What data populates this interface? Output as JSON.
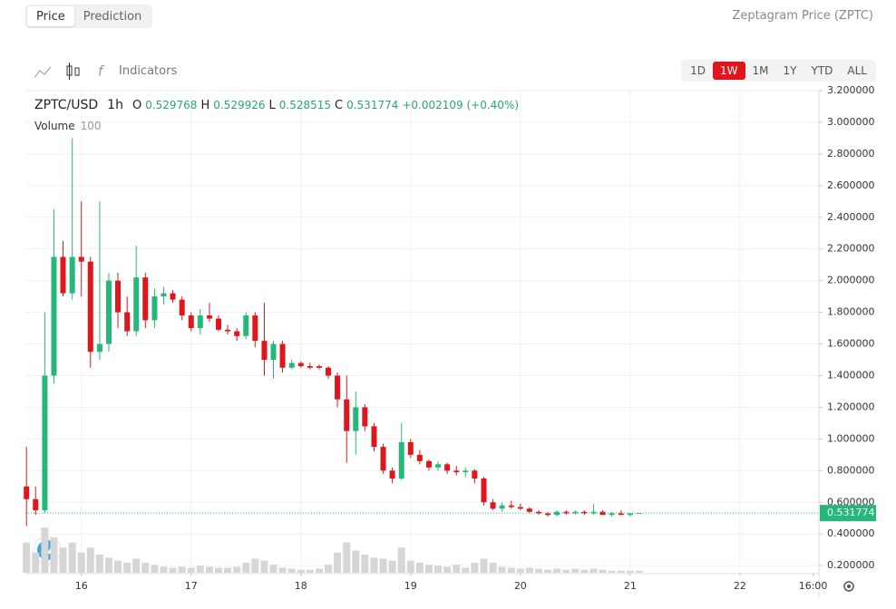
{
  "ui": {
    "tabs": [
      "Price",
      "Prediction"
    ],
    "page_title": "Zeptagram Price (ZPTC)",
    "indicators": "Indicators",
    "ranges": [
      "1D",
      "1W",
      "1M",
      "1Y",
      "YTD",
      "ALL"
    ]
  },
  "chart_data": {
    "type": "candlestick",
    "symbol": "ZPTC/USD",
    "interval": "1h",
    "ohlc_labels": [
      "O",
      "H",
      "L",
      "C"
    ],
    "change": "+0.002109 (+0.40%)",
    "volume_label": "Volume",
    "volume_length": 100,
    "x": [
      15.5,
      15.583,
      15.667,
      15.75,
      15.833,
      15.917,
      16,
      16.083,
      16.167,
      16.25,
      16.333,
      16.417,
      16.5,
      16.583,
      16.667,
      16.75,
      16.833,
      16.917,
      17,
      17.083,
      17.167,
      17.25,
      17.333,
      17.417,
      17.5,
      17.583,
      17.667,
      17.75,
      17.833,
      17.917,
      18,
      18.083,
      18.167,
      18.25,
      18.333,
      18.417,
      18.5,
      18.583,
      18.667,
      18.75,
      18.833,
      18.917,
      19,
      19.083,
      19.167,
      19.25,
      19.333,
      19.417,
      19.5,
      19.583,
      19.667,
      19.75,
      19.833,
      19.917,
      20,
      20.083,
      20.167,
      20.25,
      20.333,
      20.417,
      20.5,
      20.583,
      20.667,
      20.75,
      20.833,
      20.917,
      21,
      21.083
    ],
    "open": [
      0.7,
      0.62,
      0.55,
      1.4,
      2.15,
      1.92,
      2.15,
      2.12,
      1.55,
      1.6,
      2.0,
      1.8,
      1.68,
      2.02,
      1.75,
      1.9,
      1.92,
      1.88,
      1.78,
      1.7,
      1.78,
      1.76,
      1.69,
      1.68,
      1.65,
      1.78,
      1.62,
      1.5,
      1.6,
      1.45,
      1.48,
      1.46,
      1.46,
      1.45,
      1.4,
      1.25,
      1.05,
      1.2,
      1.08,
      0.95,
      0.8,
      0.75,
      0.98,
      0.9,
      0.86,
      0.82,
      0.84,
      0.8,
      0.79,
      0.8,
      0.75,
      0.6,
      0.56,
      0.58,
      0.57,
      0.56,
      0.54,
      0.53,
      0.52,
      0.54,
      0.53,
      0.54,
      0.53,
      0.54,
      0.52,
      0.53,
      0.52,
      0.529768
    ],
    "high": [
      0.95,
      0.7,
      1.8,
      2.45,
      2.25,
      2.9,
      2.5,
      2.15,
      2.5,
      2.05,
      2.05,
      1.9,
      2.22,
      2.05,
      1.95,
      1.96,
      1.94,
      1.9,
      1.8,
      1.82,
      1.86,
      1.78,
      1.72,
      1.7,
      1.8,
      1.8,
      1.86,
      1.62,
      1.62,
      1.5,
      1.49,
      1.48,
      1.47,
      1.46,
      1.42,
      1.4,
      1.3,
      1.22,
      1.1,
      0.97,
      0.82,
      1.1,
      1.0,
      0.93,
      0.87,
      0.86,
      0.85,
      0.83,
      0.82,
      0.81,
      0.76,
      0.62,
      0.6,
      0.61,
      0.59,
      0.57,
      0.55,
      0.54,
      0.55,
      0.55,
      0.55,
      0.55,
      0.59,
      0.55,
      0.54,
      0.55,
      0.53,
      0.529926
    ],
    "low": [
      0.45,
      0.52,
      0.53,
      1.35,
      1.9,
      1.88,
      1.9,
      1.45,
      1.5,
      1.55,
      1.7,
      1.65,
      1.65,
      1.7,
      1.7,
      1.85,
      1.86,
      1.75,
      1.68,
      1.66,
      1.74,
      1.68,
      1.66,
      1.62,
      1.63,
      1.58,
      1.4,
      1.38,
      1.42,
      1.44,
      1.45,
      1.44,
      1.44,
      1.38,
      1.2,
      0.85,
      0.9,
      1.05,
      0.92,
      0.78,
      0.72,
      0.74,
      0.88,
      0.84,
      0.8,
      0.8,
      0.78,
      0.77,
      0.76,
      0.72,
      0.58,
      0.55,
      0.54,
      0.56,
      0.55,
      0.53,
      0.52,
      0.51,
      0.51,
      0.52,
      0.52,
      0.52,
      0.52,
      0.52,
      0.51,
      0.52,
      0.51,
      0.528515
    ],
    "close": [
      0.62,
      0.55,
      1.4,
      2.15,
      1.92,
      2.15,
      2.12,
      1.55,
      1.6,
      2.0,
      1.8,
      1.68,
      2.02,
      1.75,
      1.9,
      1.92,
      1.88,
      1.78,
      1.7,
      1.78,
      1.76,
      1.69,
      1.68,
      1.65,
      1.78,
      1.62,
      1.5,
      1.6,
      1.45,
      1.48,
      1.46,
      1.45,
      1.45,
      1.4,
      1.25,
      1.05,
      1.2,
      1.08,
      0.95,
      0.8,
      0.75,
      0.98,
      0.9,
      0.86,
      0.82,
      0.84,
      0.8,
      0.79,
      0.8,
      0.75,
      0.6,
      0.56,
      0.58,
      0.57,
      0.56,
      0.54,
      0.53,
      0.52,
      0.54,
      0.53,
      0.54,
      0.53,
      0.54,
      0.52,
      0.53,
      0.52,
      0.53,
      0.531774
    ],
    "volume": [
      30,
      20,
      45,
      35,
      25,
      30,
      20,
      25,
      18,
      15,
      12,
      10,
      14,
      10,
      8,
      6,
      5,
      6,
      5,
      7,
      6,
      5,
      5,
      6,
      10,
      14,
      12,
      8,
      5,
      4,
      3,
      3,
      4,
      8,
      20,
      30,
      22,
      18,
      15,
      14,
      12,
      25,
      12,
      10,
      8,
      7,
      6,
      8,
      5,
      10,
      14,
      10,
      6,
      5,
      4,
      5,
      4,
      3,
      4,
      3,
      4,
      3,
      4,
      3,
      2,
      2,
      2,
      2
    ],
    "up_color": "#26b87a",
    "down_color": "#e0161d",
    "volume_color": "#d6d6d6",
    "xlim": [
      15.49,
      22.72
    ],
    "xticks": [
      16,
      17,
      18,
      19,
      20,
      21,
      22,
      {
        "value": 22.667,
        "label": "16:00"
      }
    ],
    "ylim": [
      0.155,
      3.2
    ],
    "yticks": [
      {
        "value": 0.2,
        "label": "0.200000"
      },
      {
        "value": 0.4,
        "label": "0.400000"
      },
      {
        "value": 0.6,
        "label": "0.600000"
      },
      {
        "value": 0.8,
        "label": "0.800000"
      },
      {
        "value": 1.0,
        "label": "1.000000"
      },
      {
        "value": 1.2,
        "label": "1.200000"
      },
      {
        "value": 1.4,
        "label": "1.400000"
      },
      {
        "value": 1.6,
        "label": "1.600000"
      },
      {
        "value": 1.8,
        "label": "1.800000"
      },
      {
        "value": 2.0,
        "label": "2.000000"
      },
      {
        "value": 2.2,
        "label": "2.200000"
      },
      {
        "value": 2.4,
        "label": "2.400000"
      },
      {
        "value": 2.6,
        "label": "2.600000"
      },
      {
        "value": 2.8,
        "label": "2.800000"
      },
      {
        "value": 3.0,
        "label": "3.000000"
      },
      {
        "value": 3.2,
        "label": "3.200000"
      }
    ],
    "grid": true
  }
}
